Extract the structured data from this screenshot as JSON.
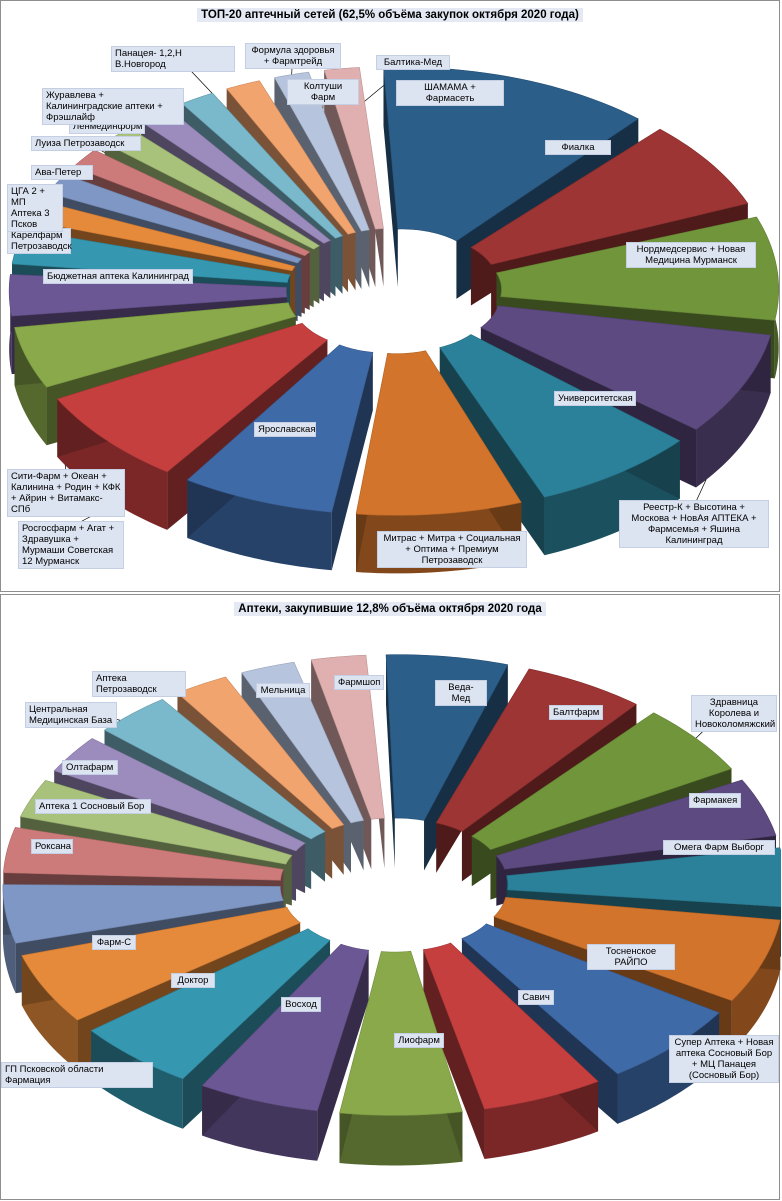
{
  "colors": [
    "#2c5e8a",
    "#9c3534",
    "#71953b",
    "#5d4a80",
    "#2b8199",
    "#d2742b",
    "#3f6aa8",
    "#c63f3f",
    "#89a94a",
    "#6b5794",
    "#3597b0",
    "#e58a3a",
    "#7f97c4",
    "#cd7b7a",
    "#a8c27b",
    "#9c8cbd",
    "#7ab8cb",
    "#f2a46e",
    "#b6c4de",
    "#dfb0af"
  ],
  "chart_data": [
    {
      "type": "pie",
      "title": "ТОП-20 аптечный сетей (62,5% объёма закупок октября  2020 года)",
      "categories": [
        "Фиалка",
        "Нордмедсервис + Новая Медицина Мурманск",
        "Реестр-К + Высотина + Москова + НовАя АПТЕКА + Фармсемья + Яшина Калининград",
        "Университетская",
        "Митрас + Митра + Социальная + Оптима + Премиум Петрозаводск",
        "Ярославская",
        "Росгосфарм + Агат + Здравушка + Мурмаши Советская 12 Мурманск",
        "Сити-Фарм + Океан + Калинина + Родин + КФК + Айрин + Витамакс-СПб",
        "Бюджетная аптека Калининград",
        "Карелфарм Петрозаводск",
        "ЦГА 2 + МП Аптека 3 Псков",
        "Ава-Петер",
        "Луиза Петрозаводск",
        "Ленмединформ",
        "Журавлева + Калининградские аптеки + Фрэшлайф",
        "Панацея- 1,2,Н В.Новгород",
        "Формула здоровья + Фармтрейд",
        "Колтуши Фарм",
        "Балтика-Мед",
        "ШАМАМА + Фармасеть"
      ],
      "values": [
        12.0,
        7.0,
        8.0,
        8.0,
        7.5,
        7.5,
        7.0,
        7.5,
        5.0,
        3.5,
        3.0,
        2.0,
        2.0,
        2.0,
        2.0,
        2.0,
        2.0,
        2.0,
        2.0,
        2.0
      ]
    },
    {
      "type": "pie",
      "title": "Аптеки, закупившие 12,8% объёма октября 2020 года",
      "categories": [
        "Веда-Мед",
        "Балтфарм",
        "Здравница Королева и Новоколомяжский",
        "Фармакея",
        "Омега Фарм Выборг",
        "Супер Аптека + Новая аптека Сосновый Бор + МЦ Панацея (Сосновый Бор)",
        "Тосненское РАЙПО",
        "Савич",
        "Лиофарм",
        "Восход",
        "Доктор",
        "Фарм-С",
        "ГП Псковской области Фармация",
        "Роксана",
        "Аптека 1 Сосновый Бор",
        "Олтафарм",
        "Центральная Медицинская База",
        "Аптека Петрозаводск",
        "Мельница",
        "Фармшоп"
      ],
      "values": [
        6.0,
        6.0,
        6.0,
        5.0,
        5.0,
        7.0,
        7.0,
        6.0,
        6.0,
        6.0,
        6.0,
        6.0,
        5.0,
        4.0,
        3.5,
        3.5,
        4.0,
        3.0,
        3.0,
        3.0
      ]
    }
  ]
}
